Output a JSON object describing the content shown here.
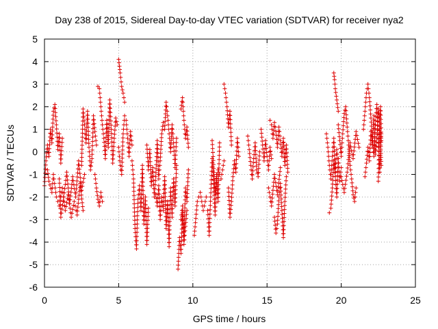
{
  "chart_data": {
    "type": "scatter",
    "title": "Day 238 of 2015, Sidereal Day-to-day VTEC variation (SDTVAR) for receiver nya2",
    "xlabel": "GPS time / hours",
    "ylabel": "SDTVAR / TECUs",
    "xlim": [
      0,
      25
    ],
    "ylim": [
      -6,
      5
    ],
    "x_ticks": [
      0,
      5,
      10,
      15,
      20,
      25
    ],
    "y_ticks": [
      -6,
      -5,
      -4,
      -3,
      -2,
      -1,
      0,
      1,
      2,
      3,
      4,
      5
    ],
    "grid": true,
    "marker": "+",
    "color": "#dd0000",
    "segments": [
      {
        "x": [
          0.0,
          0.1,
          0.2,
          0.3,
          0.4,
          0.5,
          0.6,
          0.7,
          0.8,
          0.9,
          1.0,
          1.1,
          1.2
        ],
        "y": [
          -1.5,
          -0.4,
          0.3,
          -0.2,
          1.0,
          0.4,
          1.8,
          2.1,
          1.2,
          0.1,
          0.8,
          -0.5,
          0.6
        ]
      },
      {
        "x": [
          0.2,
          0.3,
          0.5,
          0.6,
          0.8,
          1.0,
          1.2,
          1.4,
          1.6,
          1.8,
          2.0,
          2.2,
          2.4,
          2.6
        ],
        "y": [
          -0.8,
          -1.3,
          -1.8,
          -1.0,
          -2.0,
          -2.4,
          -1.6,
          -2.6,
          -1.9,
          -2.9,
          -2.2,
          -2.8,
          -1.4,
          -2.6
        ]
      },
      {
        "x": [
          1.0,
          1.1,
          1.3,
          1.5,
          1.7,
          1.9,
          2.1,
          2.3,
          2.5,
          2.7
        ],
        "y": [
          -1.2,
          -2.9,
          -2.0,
          -0.9,
          -2.3,
          -1.1,
          -2.0,
          -0.4,
          -1.7,
          -1.0
        ]
      },
      {
        "x": [
          2.5,
          2.6,
          2.7,
          2.8,
          2.9,
          3.0,
          3.1,
          3.2,
          3.3,
          3.4,
          3.5
        ],
        "y": [
          -0.6,
          1.9,
          1.2,
          0.4,
          1.8,
          0.2,
          -0.8,
          -0.3,
          1.6,
          0.9,
          0.3
        ]
      },
      {
        "x": [
          3.4,
          3.5,
          3.6,
          3.7,
          3.8,
          3.9
        ],
        "y": [
          -1.0,
          -1.6,
          -2.1,
          -2.4,
          -1.8,
          -2.2
        ]
      },
      {
        "x": [
          3.6,
          3.7,
          3.8,
          3.9,
          4.0,
          4.1,
          4.2,
          4.3,
          4.4,
          4.5,
          4.6,
          4.7,
          4.8,
          4.9
        ],
        "y": [
          2.9,
          2.8,
          2.0,
          1.2,
          0.6,
          -0.3,
          1.4,
          0.2,
          2.3,
          1.0,
          -0.5,
          0.6,
          1.5,
          1.2
        ]
      },
      {
        "x": [
          5.0,
          5.05,
          5.1,
          5.2,
          5.3,
          5.4
        ],
        "y": [
          4.1,
          3.8,
          3.5,
          2.9,
          2.6,
          2.2
        ]
      },
      {
        "x": [
          5.0,
          5.1,
          5.2,
          5.3,
          5.4,
          5.5,
          5.6,
          5.7,
          5.8,
          5.9
        ],
        "y": [
          0.2,
          -0.6,
          -1.0,
          0.8,
          1.6,
          1.4,
          0.6,
          -0.2,
          0.9,
          0.3
        ]
      },
      {
        "x": [
          5.9,
          6.0,
          6.1,
          6.2,
          6.3,
          6.4,
          6.5,
          6.6,
          6.7,
          6.8,
          6.9,
          7.0
        ],
        "y": [
          -0.4,
          -1.2,
          -3.4,
          -4.3,
          -2.1,
          -1.5,
          -2.6,
          -0.6,
          -3.2,
          -2.0,
          -4.1,
          -2.5
        ]
      },
      {
        "x": [
          6.9,
          7.0,
          7.1,
          7.2,
          7.3,
          7.4,
          7.5,
          7.6,
          7.7,
          7.8,
          7.9,
          8.0
        ],
        "y": [
          0.3,
          -0.8,
          0.1,
          -1.5,
          -0.7,
          -2.0,
          -1.1,
          0.5,
          -1.2,
          -0.4,
          0.8,
          1.3
        ]
      },
      {
        "x": [
          7.5,
          7.6,
          7.7,
          7.8,
          7.9,
          8.0,
          8.1,
          8.2,
          8.3,
          8.4,
          8.5,
          8.6,
          8.7,
          8.8,
          8.9
        ],
        "y": [
          -1.9,
          -2.4,
          -1.5,
          -3.0,
          -2.0,
          -2.6,
          -1.1,
          -3.4,
          -2.2,
          -4.2,
          -1.6,
          -2.9,
          -1.2,
          -2.4,
          -0.6
        ]
      },
      {
        "x": [
          8.1,
          8.2,
          8.3,
          8.4,
          8.5,
          8.6,
          8.7,
          8.8,
          8.9
        ],
        "y": [
          1.0,
          2.2,
          1.6,
          0.8,
          0.0,
          1.2,
          0.4,
          -0.7,
          0.6
        ]
      },
      {
        "x": [
          9.0,
          9.1,
          9.2,
          9.3,
          9.4,
          9.5,
          9.6,
          9.7
        ],
        "y": [
          -5.2,
          -3.8,
          -4.5,
          -2.7,
          -3.9,
          -1.6,
          -2.2,
          -0.8
        ]
      },
      {
        "x": [
          9.2,
          9.3,
          9.4,
          9.5,
          9.6,
          9.7
        ],
        "y": [
          1.9,
          2.4,
          1.4,
          0.6,
          1.1,
          0.2
        ]
      },
      {
        "x": [
          9.2,
          9.3,
          9.4,
          9.5,
          9.6
        ],
        "y": [
          -3.0,
          -2.4,
          -4.1,
          -3.3,
          -2.6
        ]
      },
      {
        "x": [
          10.1,
          10.3,
          10.5,
          10.7,
          10.9
        ],
        "y": [
          -3.7,
          -2.2,
          -1.8,
          -2.6,
          -2.0
        ]
      },
      {
        "x": [
          11.0,
          11.1,
          11.2,
          11.3,
          11.4,
          11.5,
          11.6,
          11.7,
          11.8
        ],
        "y": [
          -2.6,
          -3.7,
          -2.0,
          -0.3,
          -1.4,
          -2.8,
          -1.0,
          -2.2,
          0.4
        ]
      },
      {
        "x": [
          11.3,
          11.5,
          11.7,
          11.9,
          12.1
        ],
        "y": [
          0.5,
          -1.8,
          -0.8,
          -1.2,
          -0.4
        ]
      },
      {
        "x": [
          12.1,
          12.2,
          12.3,
          12.4,
          12.5,
          12.6
        ],
        "y": [
          3.0,
          2.6,
          2.0,
          1.1,
          1.8,
          0.3
        ]
      },
      {
        "x": [
          12.4,
          12.5,
          12.6,
          12.7,
          12.8,
          12.9,
          13.0,
          13.1
        ],
        "y": [
          -1.6,
          -2.9,
          -2.2,
          -1.1,
          -0.4,
          -0.9,
          0.6,
          -0.2
        ]
      },
      {
        "x": [
          13.7,
          13.8,
          13.9,
          14.0,
          14.1,
          14.2,
          14.3,
          14.4,
          14.5
        ],
        "y": [
          0.7,
          0.1,
          -0.6,
          -1.2,
          -0.3,
          0.4,
          -0.8,
          -1.1,
          0.0
        ]
      },
      {
        "x": [
          14.6,
          14.7,
          14.8,
          14.9,
          15.0,
          15.1,
          15.2,
          15.3
        ],
        "y": [
          1.0,
          0.3,
          -0.4,
          0.5,
          -0.2,
          -0.8,
          0.2,
          -0.3
        ]
      },
      {
        "x": [
          15.1,
          15.3,
          15.5,
          15.7,
          15.9
        ],
        "y": [
          -1.6,
          -2.4,
          -1.0,
          -1.9,
          -0.7
        ]
      },
      {
        "x": [
          15.2,
          15.3,
          15.4,
          15.5,
          15.6,
          15.7,
          15.8,
          15.9,
          16.0,
          16.1,
          16.2,
          16.3,
          16.4
        ],
        "y": [
          1.4,
          1.2,
          0.6,
          1.3,
          0.9,
          0.2,
          1.1,
          0.5,
          -0.2,
          0.6,
          -0.6,
          0.3,
          -0.9
        ]
      },
      {
        "x": [
          15.5,
          15.6,
          15.7,
          15.8,
          15.9,
          16.0,
          16.1,
          16.2,
          16.3
        ],
        "y": [
          -2.9,
          -3.6,
          -3.2,
          -2.0,
          -1.4,
          -2.6,
          -3.8,
          -2.2,
          -1.1
        ]
      },
      {
        "x": [
          19.0,
          19.1,
          19.2,
          19.3,
          19.4,
          19.5,
          19.6,
          19.7,
          19.8
        ],
        "y": [
          0.8,
          0.2,
          -0.6,
          -1.2,
          -0.2,
          0.6,
          -0.9,
          0.1,
          -0.5
        ]
      },
      {
        "x": [
          19.2,
          19.3,
          19.4,
          19.5,
          19.6,
          19.7,
          19.8,
          19.9,
          20.0
        ],
        "y": [
          -2.7,
          -2.5,
          -1.6,
          -0.4,
          -1.1,
          -2.0,
          -0.3,
          -1.3,
          -0.7
        ]
      },
      {
        "x": [
          19.5,
          19.55,
          19.6,
          19.7,
          19.8
        ],
        "y": [
          3.5,
          3.2,
          2.8,
          2.3,
          1.8
        ]
      },
      {
        "x": [
          19.8,
          19.9,
          20.0,
          20.1,
          20.2,
          20.3,
          20.4,
          20.5,
          20.6,
          20.7,
          20.8,
          20.9,
          21.0
        ],
        "y": [
          1.2,
          0.5,
          -0.2,
          0.8,
          1.7,
          2.0,
          1.1,
          0.3,
          -0.6,
          -1.2,
          -1.9,
          -2.2,
          -1.6
        ]
      },
      {
        "x": [
          20.0,
          20.2,
          20.4,
          20.6,
          20.8,
          21.0,
          21.2
        ],
        "y": [
          -1.1,
          -1.8,
          -0.9,
          0.4,
          -0.3,
          0.9,
          0.2
        ]
      },
      {
        "x": [
          21.5,
          21.6,
          21.7,
          21.8,
          21.9,
          22.0,
          22.1,
          22.2,
          22.3,
          22.4,
          22.5,
          22.6,
          22.7
        ],
        "y": [
          1.0,
          1.8,
          2.6,
          3.0,
          2.4,
          1.5,
          0.6,
          -0.2,
          1.2,
          2.1,
          0.4,
          -0.9,
          0.8
        ]
      },
      {
        "x": [
          21.6,
          21.7,
          21.8,
          21.9,
          22.0,
          22.1,
          22.2,
          22.3,
          22.4,
          22.5,
          22.6,
          22.7
        ],
        "y": [
          -1.1,
          -0.5,
          0.2,
          -0.4,
          0.9,
          0.3,
          1.6,
          -0.1,
          0.6,
          1.9,
          1.2,
          -0.6
        ]
      },
      {
        "x": [
          22.5,
          22.55,
          22.6,
          22.65,
          22.7
        ],
        "y": [
          -1.3,
          0.2,
          1.5,
          2.0,
          0.5
        ]
      }
    ]
  }
}
